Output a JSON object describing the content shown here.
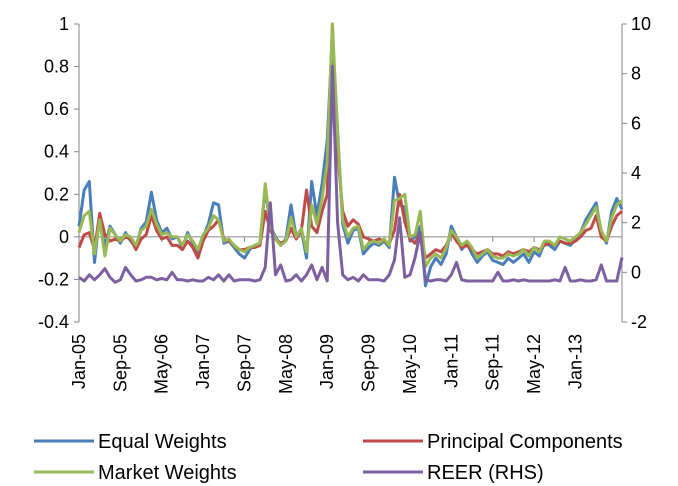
{
  "chart_data": {
    "type": "line",
    "title": "",
    "xlabel": "",
    "ylabel": "",
    "y2label": "",
    "ylim": [
      -0.4,
      1.0
    ],
    "y2lim": [
      -2,
      10
    ],
    "yticks": [
      "1",
      "0.8",
      "0.6",
      "0.4",
      "0.2",
      "0",
      "-0.2",
      "-0.4"
    ],
    "y2ticks": [
      "10",
      "8",
      "6",
      "4",
      "2",
      "0",
      "-2"
    ],
    "xtick_labels": [
      "Jan-05",
      "Sep-05",
      "May-06",
      "Jan-07",
      "Sep-07",
      "May-08",
      "Jan-09",
      "Sep-09",
      "May-10",
      "Jan-11",
      "Sep-11",
      "May-12",
      "Jan-13"
    ],
    "grid": false,
    "legend_position": "bottom",
    "series": [
      {
        "name": "Equal Weights",
        "color": "#4a7ebb",
        "axis": "left",
        "values": [
          0.05,
          0.22,
          0.26,
          -0.12,
          0.1,
          -0.05,
          0.05,
          0.01,
          -0.03,
          0.02,
          -0.02,
          -0.05,
          0.04,
          0.07,
          0.21,
          0.08,
          0.02,
          0.04,
          -0.01,
          0.0,
          -0.05,
          0.02,
          -0.03,
          -0.08,
          0.0,
          0.06,
          0.16,
          0.15,
          -0.03,
          -0.02,
          -0.05,
          -0.08,
          -0.1,
          -0.06,
          -0.04,
          -0.03,
          0.23,
          0.05,
          0.0,
          -0.04,
          -0.01,
          0.15,
          0.0,
          0.03,
          -0.1,
          0.26,
          0.1,
          0.25,
          0.45,
          0.95,
          0.5,
          0.06,
          -0.03,
          0.03,
          0.04,
          -0.08,
          -0.05,
          -0.03,
          -0.04,
          -0.02,
          -0.05,
          0.28,
          0.15,
          0.14,
          -0.02,
          0.0,
          0.05,
          -0.23,
          -0.14,
          -0.1,
          -0.13,
          -0.08,
          0.05,
          0.0,
          -0.06,
          -0.03,
          -0.08,
          -0.12,
          -0.09,
          -0.07,
          -0.11,
          -0.12,
          -0.13,
          -0.1,
          -0.12,
          -0.1,
          -0.08,
          -0.12,
          -0.07,
          -0.09,
          -0.03,
          -0.04,
          -0.06,
          -0.02,
          -0.03,
          -0.04,
          -0.01,
          0.02,
          0.08,
          0.12,
          0.16,
          0.02,
          -0.03,
          0.12,
          0.18,
          0.13
        ]
      },
      {
        "name": "Principal Components",
        "color": "#be4b48",
        "axis": "left",
        "values": [
          -0.05,
          0.01,
          0.02,
          -0.06,
          0.11,
          0.01,
          -0.02,
          -0.01,
          -0.02,
          0.0,
          -0.01,
          -0.06,
          -0.01,
          0.01,
          0.1,
          0.03,
          -0.01,
          0.0,
          -0.04,
          -0.04,
          -0.06,
          -0.02,
          -0.05,
          -0.1,
          -0.02,
          0.03,
          0.05,
          0.08,
          -0.01,
          -0.02,
          -0.04,
          -0.06,
          -0.06,
          -0.05,
          -0.05,
          -0.04,
          0.12,
          0.03,
          -0.01,
          -0.03,
          -0.02,
          0.04,
          -0.01,
          0.03,
          0.22,
          0.05,
          0.02,
          0.12,
          0.2,
          1.0,
          0.4,
          0.12,
          0.05,
          0.08,
          0.06,
          0.0,
          -0.01,
          -0.02,
          -0.01,
          -0.02,
          -0.03,
          0.03,
          0.2,
          0.07,
          -0.01,
          -0.03,
          0.02,
          -0.1,
          -0.08,
          -0.06,
          -0.07,
          -0.04,
          0.02,
          -0.02,
          -0.05,
          -0.04,
          -0.06,
          -0.08,
          -0.07,
          -0.06,
          -0.08,
          -0.08,
          -0.09,
          -0.07,
          -0.08,
          -0.07,
          -0.06,
          -0.07,
          -0.05,
          -0.06,
          -0.04,
          -0.03,
          -0.04,
          -0.02,
          -0.03,
          -0.03,
          -0.02,
          0.0,
          0.03,
          0.04,
          0.1,
          0.0,
          -0.02,
          0.05,
          0.1,
          0.12
        ]
      },
      {
        "name": "Market Weights",
        "color": "#98b954",
        "axis": "left",
        "values": [
          0.02,
          0.1,
          0.12,
          -0.08,
          0.08,
          -0.09,
          0.04,
          0.01,
          -0.02,
          0.01,
          0.0,
          -0.04,
          0.03,
          0.05,
          0.13,
          0.06,
          0.01,
          0.02,
          0.0,
          0.0,
          -0.04,
          0.01,
          -0.02,
          -0.06,
          0.01,
          0.04,
          0.1,
          0.08,
          -0.02,
          -0.01,
          -0.04,
          -0.06,
          -0.07,
          -0.05,
          -0.04,
          -0.03,
          0.25,
          0.05,
          -0.01,
          -0.04,
          -0.02,
          0.09,
          0.0,
          0.04,
          -0.07,
          0.15,
          0.06,
          0.18,
          0.35,
          1.0,
          0.48,
          0.08,
          0.0,
          0.04,
          0.05,
          -0.06,
          -0.03,
          -0.02,
          -0.03,
          -0.01,
          -0.04,
          0.17,
          0.18,
          0.2,
          0.0,
          0.01,
          0.12,
          -0.14,
          -0.1,
          -0.08,
          -0.1,
          -0.05,
          0.03,
          0.0,
          -0.04,
          -0.02,
          -0.05,
          -0.1,
          -0.08,
          -0.06,
          -0.09,
          -0.1,
          -0.1,
          -0.08,
          -0.09,
          -0.08,
          -0.06,
          -0.09,
          -0.05,
          -0.07,
          -0.02,
          -0.02,
          -0.04,
          0.0,
          -0.01,
          -0.02,
          0.0,
          0.02,
          0.06,
          0.1,
          0.14,
          0.03,
          -0.02,
          0.09,
          0.15,
          0.17
        ]
      },
      {
        "name": "REER (RHS)",
        "color": "#7d60a0",
        "axis": "right",
        "values": [
          -0.2,
          -0.35,
          -0.1,
          -0.3,
          -0.1,
          0.15,
          -0.2,
          -0.4,
          -0.3,
          0.2,
          -0.1,
          -0.35,
          -0.3,
          -0.2,
          -0.2,
          -0.3,
          -0.25,
          -0.3,
          0.0,
          -0.3,
          -0.3,
          -0.35,
          -0.3,
          -0.35,
          -0.35,
          -0.2,
          -0.3,
          -0.1,
          -0.35,
          -0.1,
          -0.35,
          -0.3,
          -0.3,
          -0.3,
          -0.35,
          -0.3,
          0.2,
          2.8,
          -0.1,
          0.3,
          -0.35,
          -0.3,
          -0.1,
          -0.35,
          -0.1,
          0.3,
          -0.3,
          0.2,
          -0.35,
          8.3,
          2.0,
          -0.1,
          -0.3,
          -0.2,
          -0.35,
          -0.1,
          -0.3,
          -0.3,
          -0.3,
          -0.35,
          -0.1,
          0.5,
          2.2,
          -0.2,
          -0.1,
          0.6,
          1.6,
          -0.3,
          -0.35,
          -0.3,
          -0.3,
          -0.35,
          -0.1,
          0.4,
          -0.3,
          -0.35,
          -0.35,
          -0.35,
          -0.35,
          -0.35,
          -0.35,
          0.0,
          -0.35,
          -0.35,
          -0.3,
          -0.35,
          -0.3,
          -0.35,
          -0.35,
          -0.35,
          -0.35,
          -0.35,
          -0.3,
          -0.35,
          0.2,
          -0.35,
          -0.35,
          -0.3,
          -0.35,
          -0.35,
          -0.3,
          0.3,
          -0.35,
          -0.35,
          -0.35,
          0.6
        ]
      }
    ]
  }
}
